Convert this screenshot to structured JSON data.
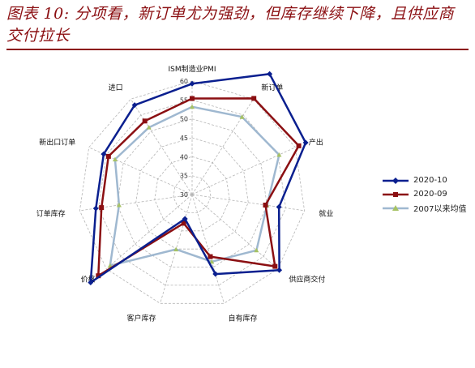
{
  "caption": "图表 10: 分项看，新订单尤为强劲，但库存继续下降，且供应商交付拉长",
  "chart_data": {
    "type": "radar",
    "title": "",
    "axes": [
      "ISM制造业PMI",
      "新订单",
      "产出",
      "就业",
      "供应商交付",
      "自有库存",
      "客户库存",
      "价格",
      "订单库存",
      "新出口订单",
      "进口"
    ],
    "range": [
      30,
      60
    ],
    "ticks": [
      30,
      35,
      40,
      45,
      50,
      55,
      60
    ],
    "grid": true,
    "legend_position": "right",
    "series": [
      {
        "name": "2020-10",
        "color": "#0a1f8f",
        "marker": "diamond",
        "values": [
          59.3,
          67.9,
          63.0,
          53.2,
          60.5,
          51.9,
          36.7,
          65.5,
          55.7,
          55.7,
          58.1
        ]
      },
      {
        "name": "2020-09",
        "color": "#8b0f12",
        "marker": "square",
        "values": [
          55.4,
          60.2,
          61.0,
          49.6,
          59.0,
          47.1,
          37.9,
          62.8,
          54.2,
          54.3,
          53.1
        ]
      },
      {
        "name": "2007以来均值",
        "color": "#9fb8d0",
        "marker": "triangle",
        "values": [
          53.2,
          54.4,
          55.3,
          50.0,
          52.5,
          48.5,
          45.1,
          58.7,
          49.5,
          52.4,
          51.1
        ]
      }
    ]
  }
}
